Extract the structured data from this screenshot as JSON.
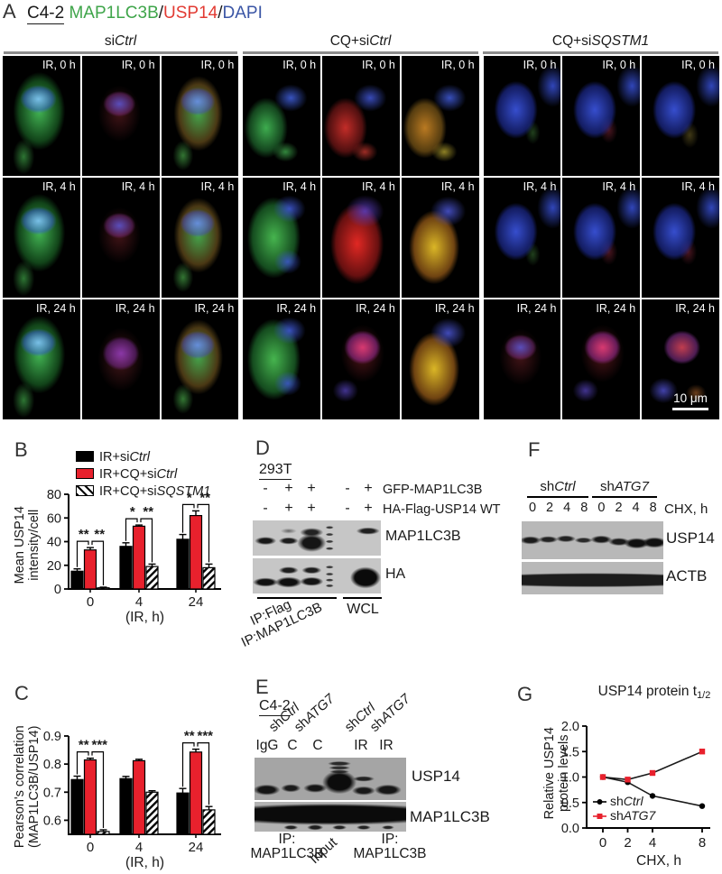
{
  "colors": {
    "accent_red": "#e8212d",
    "stain_green": "#3fa54a",
    "stain_red": "#e23b33",
    "stain_blue": "#3a55a5",
    "underline_gray": "#8c8c8c"
  },
  "panel_a": {
    "label": "A",
    "cell_line": "C4-2",
    "slash": "/",
    "stains": [
      {
        "text": "MAP1LC3B",
        "channel": "green"
      },
      {
        "text": "USP14",
        "channel": "red"
      },
      {
        "text": "DAPI",
        "channel": "blue"
      }
    ],
    "groups": [
      {
        "plain": "si",
        "italic": "Ctrl"
      },
      {
        "plain": "CQ+si",
        "italic": "Ctrl"
      },
      {
        "plain": "CQ+si",
        "italic": "SQSTM1"
      }
    ],
    "rows": [
      {
        "time_label": "IR, 0 h",
        "variants": [
          "vA",
          "vB",
          "vC",
          "vD",
          "vE",
          "vF",
          "vG",
          "vH",
          "vI"
        ]
      },
      {
        "time_label": "IR, 4 h",
        "variants": [
          "vA",
          "vB",
          "vC",
          "vL",
          "vJ",
          "vK",
          "vG",
          "vH",
          "vH"
        ]
      },
      {
        "time_label": "IR, 24 h",
        "variants": [
          "vA",
          "vN",
          "vC",
          "vL",
          "vM",
          "vK",
          "vB",
          "vM",
          "vO"
        ]
      }
    ],
    "scale_bar_label": "10 μm"
  },
  "panel_b": {
    "label": "B",
    "legend": [
      {
        "plain": "IR+si",
        "italic": "Ctrl",
        "swatch": "black"
      },
      {
        "plain": "IR+CQ+si",
        "italic": "Ctrl",
        "swatch": "red"
      },
      {
        "plain": "IR+CQ+si",
        "italic": "SQSTM1",
        "swatch": "hatched"
      }
    ]
  },
  "panel_c": {
    "label": "C"
  },
  "panel_d": {
    "label": "D",
    "cell_line": "293T",
    "sign_rows": [
      {
        "signs": [
          "-",
          "+",
          "+",
          "-",
          "+"
        ],
        "label": "GFP-MAP1LC3B"
      },
      {
        "signs": [
          "-",
          "+",
          "+",
          "-",
          "+"
        ],
        "label": "HA-Flag-USP14 WT"
      }
    ],
    "blot_labels": [
      "MAP1LC3B",
      "HA"
    ],
    "ip_label_1": "IP:Flag",
    "ip_label_2": "IP:MAP1LC3B",
    "wcl_label": "WCL"
  },
  "panel_e": {
    "label": "E",
    "cell_line": "C4-2",
    "rotated_labels": [
      {
        "plain": "sh",
        "italic": "Ctrl"
      },
      {
        "plain": "sh",
        "italic": "ATG7"
      },
      {
        "plain": "sh",
        "italic": "Ctrl"
      },
      {
        "plain": "sh",
        "italic": "ATG7"
      }
    ],
    "lane_labels": [
      "IgG",
      "C",
      "C",
      "IR",
      "IR"
    ],
    "blot_labels": [
      "USP14",
      "MAP1LC3B"
    ],
    "bottom_left_line1": "IP:",
    "bottom_left_line2": "MAP1LC3B",
    "input_label": "Input",
    "bottom_right_line1": "IP:",
    "bottom_right_line2": "MAP1LC3B"
  },
  "panel_f": {
    "label": "F",
    "groups": [
      {
        "plain": "sh",
        "italic": "Ctrl"
      },
      {
        "plain": "sh",
        "italic": "ATG7"
      }
    ],
    "lane_times": [
      "0",
      "2",
      "4",
      "8",
      "0",
      "2",
      "4",
      "8"
    ],
    "chx_label": "CHX, h",
    "blot_labels": [
      "USP14",
      "ACTB"
    ]
  },
  "panel_g": {
    "label": "G"
  },
  "chart_data": [
    {
      "id": "chartB",
      "type": "bar",
      "panel": "B",
      "categories": [
        "0",
        "4",
        "24"
      ],
      "xlabel": "(IR, h)",
      "ylabel": [
        "Mean USP14",
        "intensity/cell"
      ],
      "ylim": [
        0,
        80
      ],
      "yticks": [
        0,
        20,
        40,
        60,
        80
      ],
      "ytick_labels": [
        "0",
        "20",
        "40",
        "60",
        "80"
      ],
      "series": [
        {
          "name": "IR+siCtrl",
          "name_plain": "IR+si",
          "name_italic": "Ctrl",
          "color": "#000000",
          "values": [
            15,
            36,
            42
          ],
          "errors": [
            2,
            3,
            4
          ]
        },
        {
          "name": "IR+CQ+siCtrl",
          "name_plain": "IR+CQ+si",
          "name_italic": "Ctrl",
          "color": "#e8212d",
          "values": [
            33,
            53,
            62
          ],
          "errors": [
            2,
            1,
            4
          ]
        },
        {
          "name": "IR+CQ+siSQSTM1",
          "name_plain": "IR+CQ+si",
          "name_italic": "SQSTM1",
          "color": "hatched",
          "values": [
            1,
            19,
            18
          ],
          "errors": [
            0.5,
            2,
            3
          ]
        }
      ],
      "significance": [
        {
          "group": 0,
          "left": "**",
          "right": "**"
        },
        {
          "group": 1,
          "left": "*",
          "right": "**"
        },
        {
          "group": 2,
          "left": "*",
          "right": "**"
        }
      ]
    },
    {
      "id": "chartC",
      "type": "bar",
      "panel": "C",
      "categories": [
        "0",
        "4",
        "24"
      ],
      "xlabel": "(IR, h)",
      "ylabel": [
        "Pearson's correlation",
        "(MAP1LC3B/USP14)"
      ],
      "ylim": [
        0.55,
        0.9
      ],
      "yticks": [
        0.6,
        0.7,
        0.8,
        0.9
      ],
      "ytick_labels": [
        "0.6",
        "0.7",
        "0.8",
        "0.9"
      ],
      "series": [
        {
          "name": "IR+siCtrl",
          "name_plain": "IR+si",
          "name_italic": "Ctrl",
          "color": "#000000",
          "values": [
            0.745,
            0.748,
            0.697
          ],
          "errors": [
            0.012,
            0.008,
            0.016
          ]
        },
        {
          "name": "IR+CQ+siCtrl",
          "name_plain": "IR+CQ+si",
          "name_italic": "Ctrl",
          "color": "#e8212d",
          "values": [
            0.815,
            0.812,
            0.843
          ],
          "errors": [
            0.006,
            0.005,
            0.01
          ]
        },
        {
          "name": "IR+CQ+siSQSTM1",
          "name_plain": "IR+CQ+si",
          "name_italic": "SQSTM1",
          "color": "hatched",
          "values": [
            0.56,
            0.7,
            0.637
          ],
          "errors": [
            0.006,
            0.005,
            0.012
          ]
        }
      ],
      "significance": [
        {
          "group": 0,
          "left": "**",
          "right": "***"
        },
        {
          "group": 2,
          "left": "**",
          "right": "***"
        }
      ]
    },
    {
      "id": "chartG",
      "type": "line",
      "panel": "G",
      "title": "USP14 protein t",
      "title_sub": "1/2",
      "x": [
        0,
        2,
        4,
        8
      ],
      "xtick_labels": [
        "0",
        "2",
        "4",
        "8"
      ],
      "xlabel": "CHX, h",
      "ylabel": [
        "Relative USP14",
        "protein levels"
      ],
      "ylim": [
        0,
        2
      ],
      "yticks": [
        0,
        0.5,
        1,
        1.5,
        2
      ],
      "ytick_labels": [
        "0.0",
        "0.5",
        "1.0",
        "1.5",
        "2.0"
      ],
      "legend_position": "bottom-left",
      "series": [
        {
          "name": "shCtrl",
          "name_plain": "sh",
          "name_italic": "Ctrl",
          "color": "#000000",
          "marker": "circle",
          "values": [
            1.0,
            0.9,
            0.63,
            0.43
          ]
        },
        {
          "name": "shATG7",
          "name_plain": "sh",
          "name_italic": "ATG7",
          "color": "#e8212d",
          "marker": "square",
          "values": [
            1.0,
            0.95,
            1.08,
            1.5
          ]
        }
      ]
    }
  ]
}
